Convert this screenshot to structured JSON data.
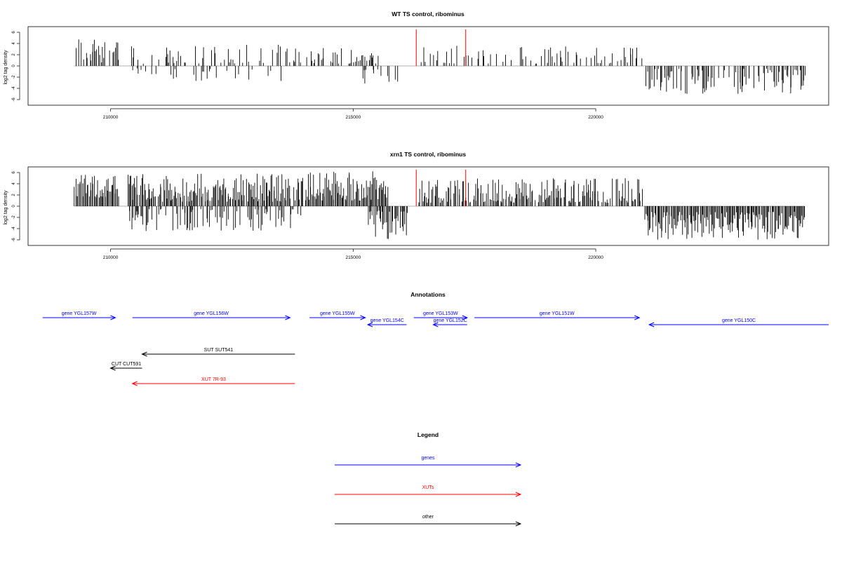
{
  "colors": {
    "gene": "#0000ff",
    "xut": "#ff0000",
    "other": "#000000",
    "highlight": "#ff0000",
    "bar": "#000000"
  },
  "chart_data": [
    {
      "type": "bar",
      "title": "WT TS control, ribominus",
      "ylabel": "log2 tag density",
      "xlim": [
        208300,
        224800
      ],
      "ylim": [
        -6.5,
        6.5
      ],
      "xticks": [
        210000,
        215000,
        220000
      ],
      "yticks": [
        6,
        4,
        2,
        0,
        -2,
        -4,
        -6
      ],
      "regions": [
        {
          "from": 209250,
          "to": 210150,
          "sign": 1,
          "min": 0.6,
          "max": 5.5,
          "density": 0.5
        },
        {
          "from": 210350,
          "to": 213950,
          "sign": 1,
          "min": 0.4,
          "max": 3.8,
          "density": 0.32
        },
        {
          "from": 210350,
          "to": 213950,
          "sign": -1,
          "min": 0.4,
          "max": 2.8,
          "density": 0.16
        },
        {
          "from": 214000,
          "to": 215600,
          "sign": 1,
          "min": 0.4,
          "max": 3.5,
          "density": 0.5
        },
        {
          "from": 215200,
          "to": 215900,
          "sign": -1,
          "min": 0.6,
          "max": 4.5,
          "density": 0.25
        },
        {
          "from": 216400,
          "to": 220950,
          "sign": 1,
          "min": 0.4,
          "max": 3.6,
          "density": 0.35
        },
        {
          "from": 221000,
          "to": 224300,
          "sign": -1,
          "min": 0.5,
          "max": 5.0,
          "density": 0.55
        }
      ],
      "highlights": [
        {
          "x": 216300,
          "y": 6.5
        },
        {
          "x": 217320,
          "y": 6.5
        }
      ]
    },
    {
      "type": "bar",
      "title": "xrn1 TS control, ribominus",
      "ylabel": "log2 tag density",
      "xlim": [
        208300,
        224800
      ],
      "ylim": [
        -6.5,
        6.5
      ],
      "xticks": [
        210000,
        215000,
        220000
      ],
      "yticks": [
        6,
        4,
        2,
        0,
        -2,
        -4,
        -6
      ],
      "regions": [
        {
          "from": 209250,
          "to": 210150,
          "sign": 1,
          "min": 1.5,
          "max": 5.6,
          "density": 1.0
        },
        {
          "from": 210350,
          "to": 213950,
          "sign": 1,
          "min": 0.8,
          "max": 5.8,
          "density": 0.9
        },
        {
          "from": 210350,
          "to": 213950,
          "sign": -1,
          "min": 0.4,
          "max": 4.5,
          "density": 0.45
        },
        {
          "from": 214000,
          "to": 215700,
          "sign": 1,
          "min": 1.0,
          "max": 6.2,
          "density": 1.0
        },
        {
          "from": 215300,
          "to": 216100,
          "sign": -1,
          "min": 0.8,
          "max": 6.0,
          "density": 0.8
        },
        {
          "from": 216350,
          "to": 220950,
          "sign": 1,
          "min": 0.6,
          "max": 5.0,
          "density": 0.8
        },
        {
          "from": 221000,
          "to": 224300,
          "sign": -1,
          "min": 1.0,
          "max": 6.0,
          "density": 1.0
        }
      ],
      "highlights": [
        {
          "x": 216300,
          "y": 6.5
        },
        {
          "x": 217320,
          "y": 6.5
        }
      ]
    }
  ],
  "annotations": {
    "title": "Annotations",
    "features": [
      {
        "label": "gene YGL157W",
        "kind": "gene",
        "from": 208600,
        "to": 210100,
        "strand": "+",
        "row": 0
      },
      {
        "label": "gene YGL156W",
        "kind": "gene",
        "from": 210450,
        "to": 213700,
        "strand": "+",
        "row": 0
      },
      {
        "label": "gene YGL155W",
        "kind": "gene",
        "from": 214100,
        "to": 215250,
        "strand": "+",
        "row": 0
      },
      {
        "label": "gene YGL154C",
        "kind": "gene",
        "from": 215300,
        "to": 216100,
        "strand": "-",
        "row": 1
      },
      {
        "label": "gene YGL153W",
        "kind": "gene",
        "from": 216250,
        "to": 217350,
        "strand": "+",
        "row": 0
      },
      {
        "label": "gene YGL152C",
        "kind": "gene",
        "from": 216650,
        "to": 217350,
        "strand": "-",
        "row": 1
      },
      {
        "label": "gene YGL151W",
        "kind": "gene",
        "from": 217500,
        "to": 220900,
        "strand": "+",
        "row": 0
      },
      {
        "label": "gene YGL150C",
        "kind": "gene",
        "from": 221100,
        "to": 224800,
        "strand": "-",
        "row": 1
      },
      {
        "label": "SUT SUT541",
        "kind": "other",
        "from": 210650,
        "to": 213800,
        "strand": "-",
        "row": 3
      },
      {
        "label": "CUT CUT591",
        "kind": "other",
        "from": 210000,
        "to": 210650,
        "strand": "-",
        "row": 4
      },
      {
        "label": "XUT 7R-93",
        "kind": "xut",
        "from": 210450,
        "to": 213800,
        "strand": "-",
        "row": 5
      }
    ]
  },
  "legend": {
    "title": "Legend",
    "items": [
      {
        "label": "genes",
        "kind": "gene"
      },
      {
        "label": "XUTs",
        "kind": "xut"
      },
      {
        "label": "other",
        "kind": "other"
      }
    ]
  }
}
